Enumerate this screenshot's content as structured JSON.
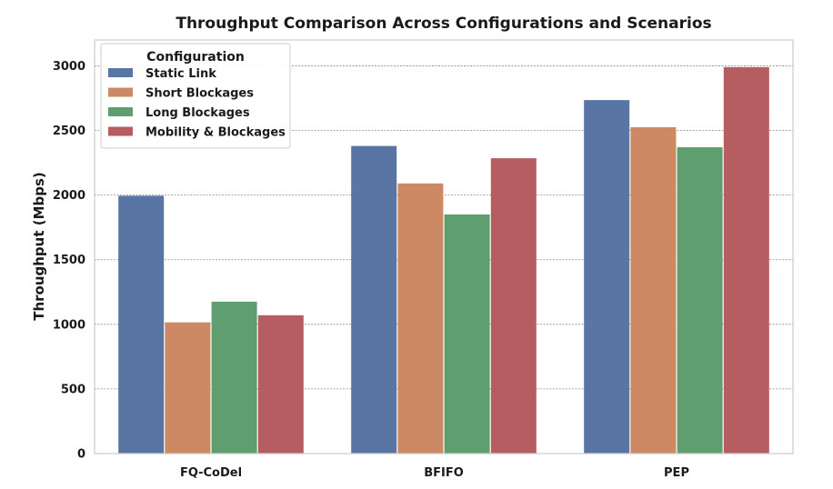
{
  "chart_data": {
    "type": "bar",
    "title": "Throughput Comparison Across Configurations and Scenarios",
    "xlabel": "",
    "ylabel": "Throughput (Mbps)",
    "ylim": [
      0,
      3200
    ],
    "yticks": [
      0,
      500,
      1000,
      1500,
      2000,
      2500,
      3000
    ],
    "grid": true,
    "legend_title": "Configuration",
    "legend_position": "top-left",
    "categories": [
      "FQ-CoDel",
      "BFIFO",
      "PEP"
    ],
    "series": [
      {
        "name": "Static Link",
        "color": "#5875a4",
        "values": [
          1995,
          2380,
          2735
        ]
      },
      {
        "name": "Short Blockages",
        "color": "#cc8963",
        "values": [
          1015,
          2090,
          2525
        ]
      },
      {
        "name": "Long Blockages",
        "color": "#5f9e6e",
        "values": [
          1175,
          1850,
          2370
        ]
      },
      {
        "name": "Mobility & Blockages",
        "color": "#b55d60",
        "values": [
          1070,
          2285,
          2990
        ]
      }
    ]
  }
}
